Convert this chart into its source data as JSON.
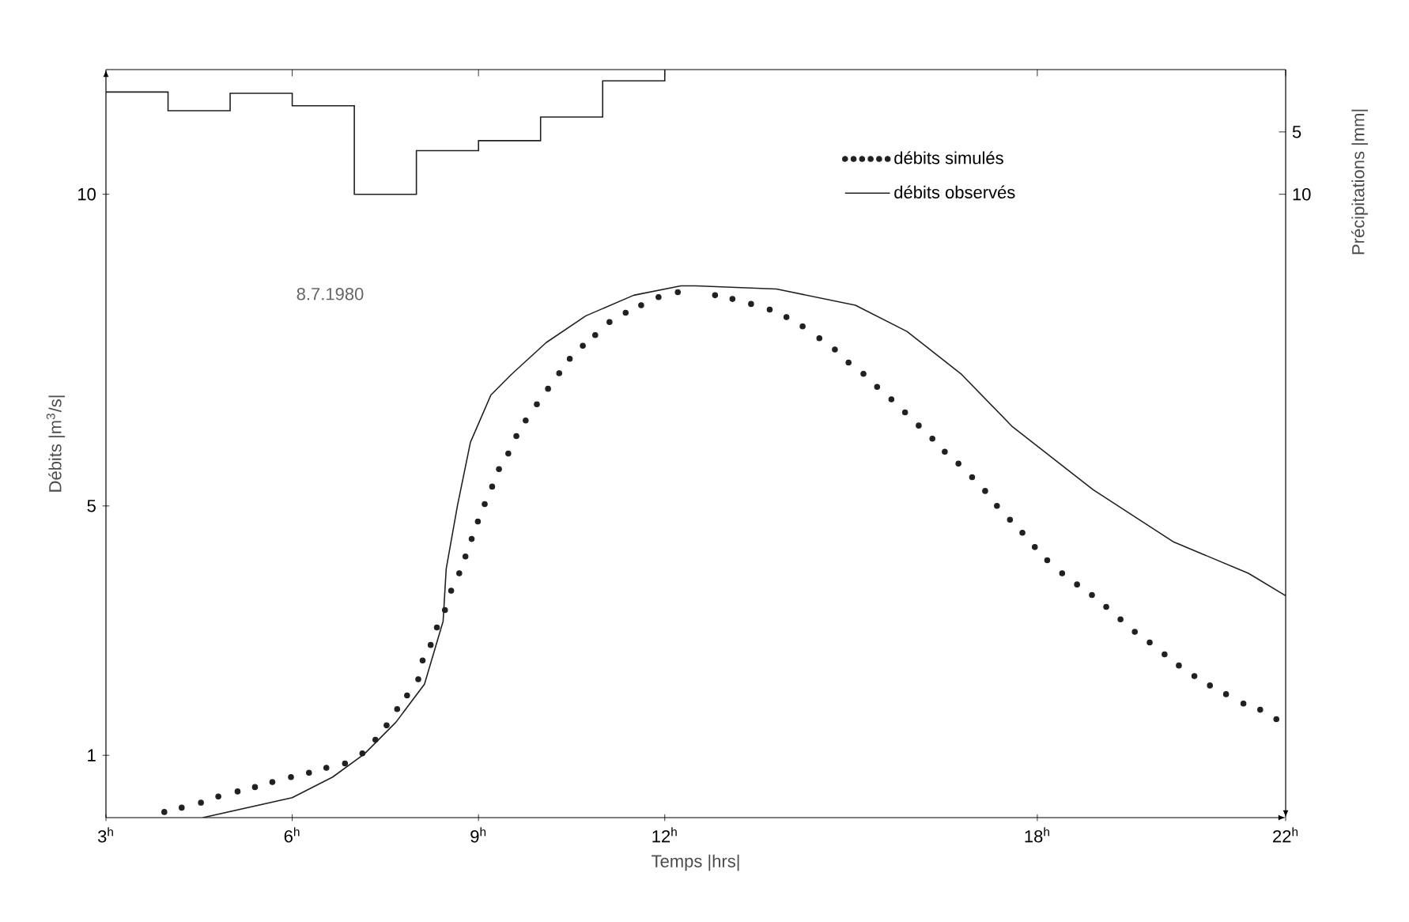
{
  "chart_data": {
    "type": "line",
    "xlabel": "Temps |hrs|",
    "ylabel": "Débits |m$^{3}$/s|",
    "y2label": "Précipitations |mm|",
    "annotations": [
      "8.7.1980"
    ],
    "xlim": [
      3,
      22
    ],
    "ylim": [
      0,
      12
    ],
    "y2lim": [
      60,
      0
    ],
    "xticks": [
      {
        "value": 3,
        "label": "3$^{h}$"
      },
      {
        "value": 6,
        "label": "6$^{h}$"
      },
      {
        "value": 9,
        "label": "9$^{h}$"
      },
      {
        "value": 12,
        "label": "12$^{h}$"
      },
      {
        "value": 18,
        "label": "18$^{h}$"
      },
      {
        "value": 22,
        "label": "22$^{h}$"
      }
    ],
    "yticks": [
      1,
      5,
      10
    ],
    "y2ticks": [
      5,
      10
    ],
    "grid": false,
    "legend": "top right",
    "series": [
      {
        "name": "débits simulés",
        "type": "scatter",
        "marker": "circle",
        "color": "#231f20",
        "x": [
          3.94,
          4.22,
          4.53,
          4.81,
          5.12,
          5.4,
          5.68,
          5.98,
          6.27,
          6.55,
          6.85,
          7.13,
          7.34,
          7.52,
          7.69,
          7.85,
          8.03,
          8.1,
          8.23,
          8.33,
          8.46,
          8.56,
          8.69,
          8.79,
          8.89,
          8.99,
          9.1,
          9.22,
          9.33,
          9.48,
          9.61,
          9.76,
          9.94,
          10.12,
          10.3,
          10.47,
          10.68,
          10.88,
          11.11,
          11.37,
          11.62,
          11.9,
          12.21,
          12.81,
          13.09,
          13.39,
          13.69,
          13.96,
          14.22,
          14.49,
          14.74,
          14.96,
          15.2,
          15.42,
          15.65,
          15.87,
          16.09,
          16.31,
          16.51,
          16.73,
          16.95,
          17.16,
          17.35,
          17.56,
          17.76,
          17.96,
          18.16,
          18.4,
          18.64,
          18.88,
          19.11,
          19.34,
          19.57,
          19.81,
          20.05,
          20.28,
          20.53,
          20.78,
          21.04,
          21.32,
          21.59,
          21.85
        ],
        "values": [
          0.09,
          0.16,
          0.24,
          0.34,
          0.42,
          0.49,
          0.57,
          0.65,
          0.72,
          0.8,
          0.87,
          1.03,
          1.25,
          1.48,
          1.74,
          1.96,
          2.22,
          2.52,
          2.77,
          3.05,
          3.33,
          3.64,
          3.92,
          4.19,
          4.47,
          4.75,
          5.03,
          5.31,
          5.59,
          5.84,
          6.12,
          6.37,
          6.63,
          6.88,
          7.13,
          7.36,
          7.57,
          7.74,
          7.95,
          8.1,
          8.22,
          8.35,
          8.43,
          8.38,
          8.32,
          8.24,
          8.15,
          8.03,
          7.88,
          7.69,
          7.51,
          7.3,
          7.12,
          6.91,
          6.71,
          6.5,
          6.29,
          6.08,
          5.87,
          5.68,
          5.46,
          5.24,
          5.0,
          4.78,
          4.57,
          4.34,
          4.13,
          3.92,
          3.74,
          3.57,
          3.38,
          3.18,
          2.98,
          2.81,
          2.62,
          2.44,
          2.27,
          2.12,
          1.98,
          1.83,
          1.73,
          1.58
        ]
      },
      {
        "name": "débits observés",
        "line_style": "solid",
        "color": "#231f20",
        "x": [
          4.56,
          6.0,
          6.65,
          7.16,
          7.67,
          8.13,
          8.43,
          8.48,
          8.66,
          8.87,
          9.2,
          9.53,
          10.09,
          10.73,
          11.5,
          12.26,
          12.5,
          13.8,
          15.07,
          15.9,
          16.78,
          17.6,
          18.9,
          20.2,
          21.4,
          22.0
        ],
        "values": [
          0.0,
          0.32,
          0.65,
          1.02,
          1.53,
          2.14,
          3.15,
          3.99,
          5.0,
          6.02,
          6.78,
          7.11,
          7.62,
          8.05,
          8.38,
          8.53,
          8.53,
          8.48,
          8.22,
          7.8,
          7.11,
          6.27,
          5.26,
          4.42,
          3.92,
          3.56
        ]
      },
      {
        "type": "step",
        "axis": "y2",
        "color": "#231f20",
        "x": [
          3,
          4,
          5,
          6,
          7,
          8,
          9,
          10,
          11,
          12
        ],
        "values": [
          1.8,
          3.3,
          1.9,
          2.9,
          10,
          6.5,
          5.7,
          3.8,
          0.9,
          0
        ]
      }
    ]
  }
}
